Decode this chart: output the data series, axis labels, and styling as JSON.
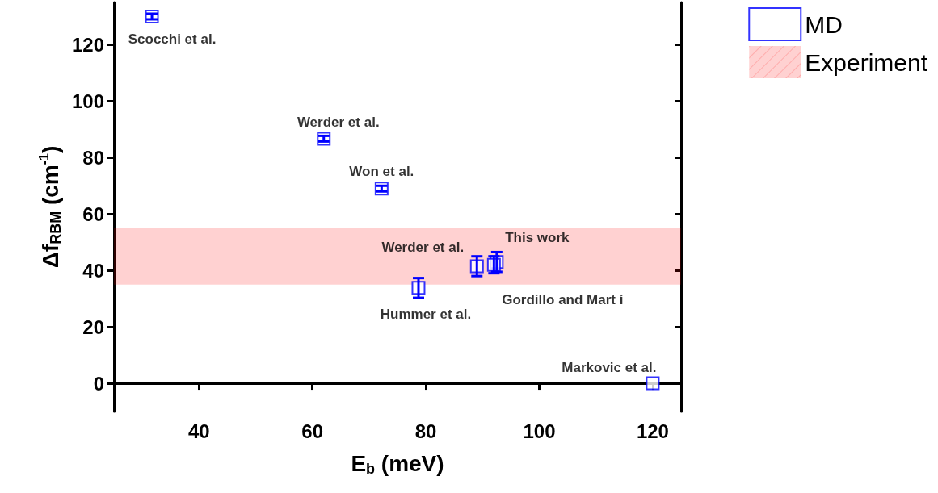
{
  "chart_data": {
    "type": "scatter",
    "xlabel": "E$_{b}$ (meV)",
    "ylabel": "Δf$_{RBM}$ (cm$^{-1}$)",
    "series": [
      {
        "name": "MD",
        "color": "#0000ff",
        "x": [
          31.7,
          62,
          72.2,
          78.7,
          89,
          92.5,
          92,
          120
        ],
        "values": [
          130,
          86.7,
          69,
          33.8,
          41.5,
          43,
          42,
          0
        ],
        "errors": [
          1,
          1,
          1,
          3.5,
          3.5,
          3.5,
          3,
          null
        ]
      }
    ],
    "marker": "square",
    "xlim": [
      25,
      125
    ],
    "xticks": [
      40,
      60,
      80,
      100,
      120
    ],
    "ylim": [
      -10,
      135
    ],
    "yticks": [
      0,
      20,
      40,
      60,
      80,
      100,
      120
    ],
    "bands": [
      {
        "axis": "y",
        "from": 35,
        "to": 55,
        "label": "Experiment",
        "color": "#ff0000"
      }
    ],
    "annotations": [
      {
        "text": "Scocchi et al.",
        "x": 31.7,
        "y": 130
      },
      {
        "text": "Werder et al.",
        "x": 62,
        "y": 86.7
      },
      {
        "text": "Won et al.",
        "x": 72.2,
        "y": 69
      },
      {
        "text": "Hummer et al.",
        "x": 78.7,
        "y": 33.8
      },
      {
        "text": "Werder et al.",
        "x": 89,
        "y": 41.5
      },
      {
        "text": "This work",
        "x": 92.5,
        "y": 43
      },
      {
        "text": "Gordillo and Mart í",
        "x": 92,
        "y": 42
      },
      {
        "text": "Markovic et al.",
        "x": 120,
        "y": 0
      }
    ],
    "grid": false,
    "legend": "top right"
  }
}
